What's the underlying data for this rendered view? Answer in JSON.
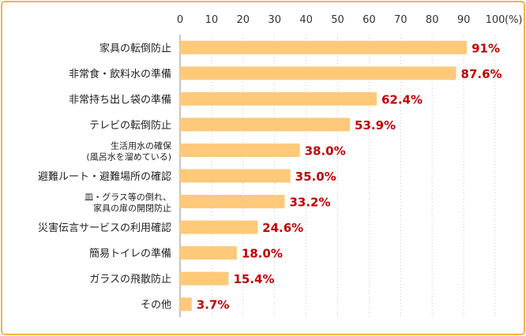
{
  "chart_data": {
    "type": "bar",
    "orientation": "horizontal",
    "unit_label": "(%)",
    "xlim": [
      0,
      100
    ],
    "x_ticks": [
      "0",
      "10",
      "20",
      "30",
      "40",
      "50",
      "60",
      "70",
      "80",
      "90",
      "100"
    ],
    "grid": "vertical dotted",
    "categories": [
      [
        "家具の転倒防止"
      ],
      [
        "非常食・飲料水の準備"
      ],
      [
        "非常持ち出し袋の準備"
      ],
      [
        "テレビの転倒防止"
      ],
      [
        "生活用水の確保",
        "(風呂水を溜めている)"
      ],
      [
        "避難ルート・避難場所の確認"
      ],
      [
        "皿・グラス等の倒れ、",
        "家具の扉の開閉防止"
      ],
      [
        "災害伝言サービスの利用確認"
      ],
      [
        "簡易トイレの準備"
      ],
      [
        "ガラスの飛散防止"
      ],
      [
        "その他"
      ]
    ],
    "values": [
      91,
      87.6,
      62.4,
      53.9,
      38.0,
      35.0,
      33.2,
      24.6,
      18.0,
      15.4,
      3.7
    ],
    "value_labels": [
      "91%",
      "87.6%",
      "62.4%",
      "53.9%",
      "38.0%",
      "35.0%",
      "33.2%",
      "24.6%",
      "18.0%",
      "15.4%",
      "3.7%"
    ],
    "bar_color": "#ffc97a",
    "value_label_color": "#c00000",
    "border_color": "#f2b24c"
  }
}
